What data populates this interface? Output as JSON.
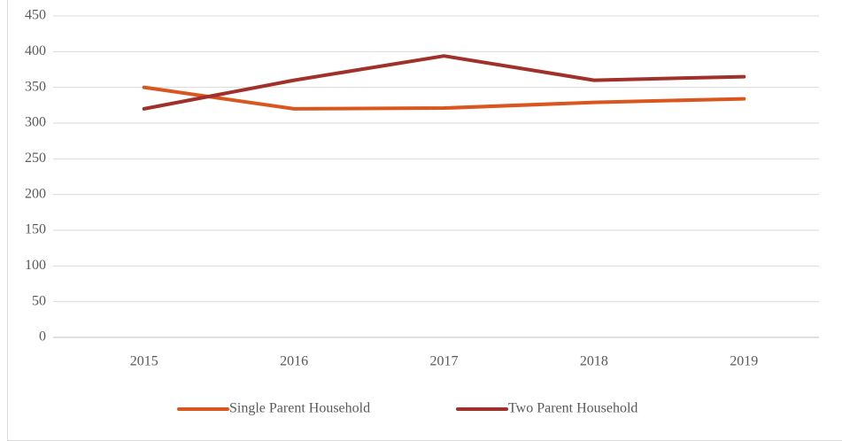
{
  "chart_data": {
    "type": "line",
    "categories": [
      "2015",
      "2016",
      "2017",
      "2018",
      "2019"
    ],
    "series": [
      {
        "name": "Single Parent Household",
        "color": "#d9571e",
        "values": [
          350,
          320,
          321,
          329,
          334
        ]
      },
      {
        "name": "Two Parent Household",
        "color": "#a0302a",
        "values": [
          320,
          360,
          394,
          360,
          365
        ]
      }
    ],
    "ylim": [
      0,
      450
    ],
    "yticks": [
      0,
      50,
      100,
      150,
      200,
      250,
      300,
      350,
      400,
      450
    ],
    "grid": true,
    "legend": "bottom"
  }
}
